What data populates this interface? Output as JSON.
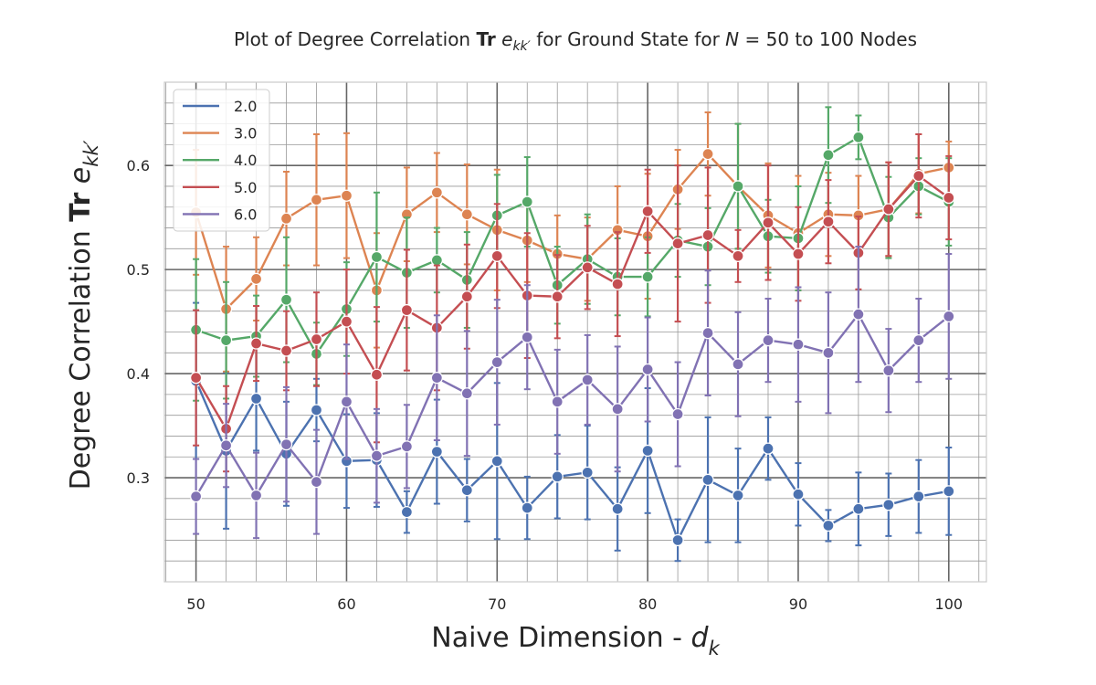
{
  "chart_data": {
    "type": "line",
    "title": {
      "prefix": "Plot of Degree Correlation ",
      "tr": "Tr",
      "e": "e",
      "sub": "kk′",
      "middle": " for Ground State for ",
      "n": "N",
      "range": " = 50 to 100 Nodes"
    },
    "xlabel": {
      "text": "Naive Dimension - ",
      "var": "d",
      "sub": "k"
    },
    "ylabel": {
      "text": "Degree Correlation ",
      "tr": "Tr",
      "e": "e",
      "sub": "kk′"
    },
    "xlim": [
      47.9,
      102.5
    ],
    "ylim": [
      0.2,
      0.68
    ],
    "xticks": [
      50,
      60,
      70,
      80,
      90,
      100
    ],
    "xtick_labels": [
      "50",
      "60",
      "70",
      "80",
      "90",
      "100"
    ],
    "yticks": [
      0.3,
      0.4,
      0.5,
      0.6
    ],
    "ytick_labels": [
      "0.3",
      "0.4",
      "0.5",
      "0.6"
    ],
    "x": [
      50,
      52,
      54,
      56,
      58,
      60,
      62,
      64,
      66,
      68,
      70,
      72,
      74,
      76,
      78,
      80,
      82,
      84,
      86,
      88,
      90,
      92,
      94,
      96,
      98,
      100
    ],
    "series": [
      {
        "name": "2.0",
        "color": "#4c72b0",
        "values": [
          0.393,
          0.326,
          0.376,
          0.323,
          0.365,
          0.316,
          0.317,
          0.267,
          0.325,
          0.288,
          0.316,
          0.271,
          0.301,
          0.305,
          0.27,
          0.326,
          0.24,
          0.298,
          0.283,
          0.328,
          0.284,
          0.254,
          0.27,
          0.274,
          0.282,
          0.287
        ],
        "err": [
          0.075,
          0.075,
          0.05,
          0.05,
          0.03,
          0.045,
          0.045,
          0.02,
          0.05,
          0.03,
          0.075,
          0.03,
          0.04,
          0.045,
          0.04,
          0.06,
          0.02,
          0.06,
          0.045,
          0.03,
          0.03,
          0.015,
          0.035,
          0.03,
          0.035,
          0.042
        ]
      },
      {
        "name": "3.0",
        "color": "#dd8452",
        "values": [
          0.555,
          0.462,
          0.491,
          0.549,
          0.567,
          0.571,
          0.48,
          0.553,
          0.574,
          0.553,
          0.538,
          0.528,
          0.515,
          0.51,
          0.538,
          0.532,
          0.577,
          0.611,
          0.58,
          0.552,
          0.535,
          0.553,
          0.552,
          0.558,
          0.592,
          0.598
        ],
        "err": [
          0.06,
          0.06,
          0.04,
          0.045,
          0.063,
          0.06,
          0.055,
          0.045,
          0.038,
          0.048,
          0.058,
          0.04,
          0.037,
          0.04,
          0.042,
          0.06,
          0.038,
          0.04,
          0.06,
          0.05,
          0.055,
          0.04,
          0.038,
          0.045,
          0.038,
          0.025
        ]
      },
      {
        "name": "4.0",
        "color": "#55a868",
        "values": [
          0.442,
          0.432,
          0.436,
          0.471,
          0.419,
          0.462,
          0.512,
          0.497,
          0.509,
          0.49,
          0.552,
          0.565,
          0.485,
          0.51,
          0.493,
          0.493,
          0.528,
          0.522,
          0.58,
          0.532,
          0.53,
          0.61,
          0.627,
          0.55,
          0.58,
          0.565
        ],
        "err": [
          0.068,
          0.056,
          0.039,
          0.06,
          0.03,
          0.045,
          0.062,
          0.053,
          0.031,
          0.046,
          0.039,
          0.043,
          0.037,
          0.043,
          0.037,
          0.038,
          0.035,
          0.037,
          0.06,
          0.035,
          0.05,
          0.046,
          0.021,
          0.039,
          0.027,
          0.042
        ]
      },
      {
        "name": "5.0",
        "color": "#c44e52",
        "values": [
          0.396,
          0.347,
          0.429,
          0.422,
          0.433,
          0.45,
          0.399,
          0.461,
          0.444,
          0.474,
          0.513,
          0.475,
          0.474,
          0.502,
          0.486,
          0.556,
          0.525,
          0.533,
          0.513,
          0.545,
          0.515,
          0.546,
          0.516,
          0.558,
          0.59,
          0.569
        ],
        "err": [
          0.065,
          0.041,
          0.036,
          0.038,
          0.045,
          0.05,
          0.065,
          0.058,
          0.06,
          0.05,
          0.05,
          0.06,
          0.04,
          0.04,
          0.05,
          0.04,
          0.075,
          0.065,
          0.025,
          0.055,
          0.045,
          0.04,
          0.035,
          0.045,
          0.04,
          0.04
        ]
      },
      {
        "name": "6.0",
        "color": "#8172b3",
        "values": [
          0.282,
          0.331,
          0.283,
          0.332,
          0.296,
          0.373,
          0.321,
          0.33,
          0.396,
          0.381,
          0.411,
          0.435,
          0.373,
          0.394,
          0.366,
          0.404,
          0.361,
          0.439,
          0.409,
          0.432,
          0.428,
          0.42,
          0.457,
          0.403,
          0.432,
          0.455
        ],
        "err": [
          0.036,
          0.04,
          0.041,
          0.055,
          0.05,
          0.055,
          0.045,
          0.04,
          0.06,
          0.06,
          0.06,
          0.05,
          0.05,
          0.043,
          0.06,
          0.05,
          0.05,
          0.06,
          0.05,
          0.04,
          0.055,
          0.058,
          0.065,
          0.04,
          0.04,
          0.06
        ]
      }
    ],
    "legend": {
      "placement": "top-left",
      "entries": [
        "2.0",
        "3.0",
        "4.0",
        "5.0",
        "6.0"
      ]
    },
    "grid": true
  }
}
